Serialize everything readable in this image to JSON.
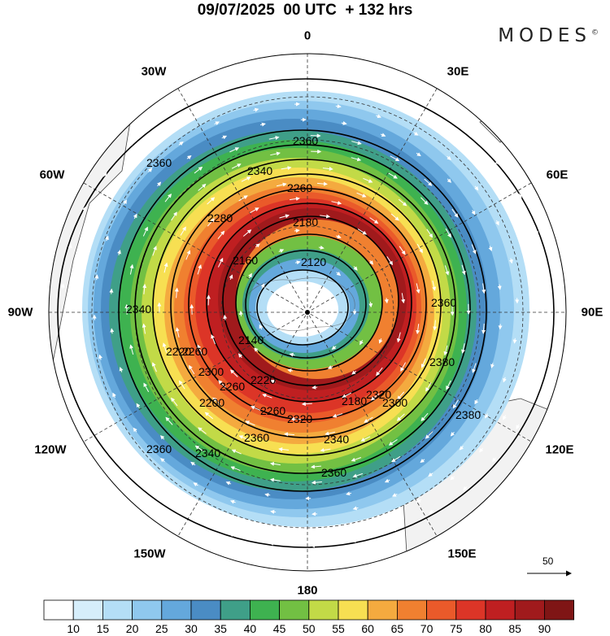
{
  "title": "09/07/2025  00 UTC  + 132 hrs",
  "brand": "MODES",
  "brand_mark": "©",
  "longitude_labels": {
    "top": "0",
    "top_right": "30E",
    "right_upper": "60E",
    "right": "90E",
    "right_lower": "120E",
    "bottom_right": "150E",
    "bottom": "180",
    "bottom_left": "150W",
    "left_lower": "120W",
    "left": "90W",
    "left_upper": "60W",
    "top_left": "30W"
  },
  "contour_labels": [
    "2360",
    "2340",
    "2260",
    "2280",
    "2180",
    "2160",
    "2120",
    "2140",
    "2220",
    "2200",
    "2180",
    "2260",
    "2300",
    "2320",
    "2320",
    "2340",
    "2360",
    "2380",
    "2340",
    "2360",
    "2380",
    "2360",
    "2340",
    "2360",
    "2260",
    "2220",
    "2300",
    "2260",
    "2360"
  ],
  "reference_vector": "50",
  "colorbar": {
    "ticks": [
      "10",
      "15",
      "20",
      "25",
      "30",
      "35",
      "40",
      "45",
      "50",
      "55",
      "60",
      "65",
      "70",
      "75",
      "80",
      "85",
      "90"
    ],
    "colors": [
      "#ffffff",
      "#d6eefb",
      "#b4def6",
      "#8fc8ee",
      "#64a8dc",
      "#4a8cc4",
      "#3f9f88",
      "#3eb250",
      "#72c043",
      "#c2da47",
      "#f7df52",
      "#f4aa3f",
      "#f08030",
      "#ea5a2a",
      "#dc3527",
      "#bf1f21",
      "#a01a1c",
      "#7f1515"
    ]
  },
  "map_colors": {
    "land": "#f2f2f2",
    "coast": "#444444",
    "ocean": "#ffffff"
  }
}
